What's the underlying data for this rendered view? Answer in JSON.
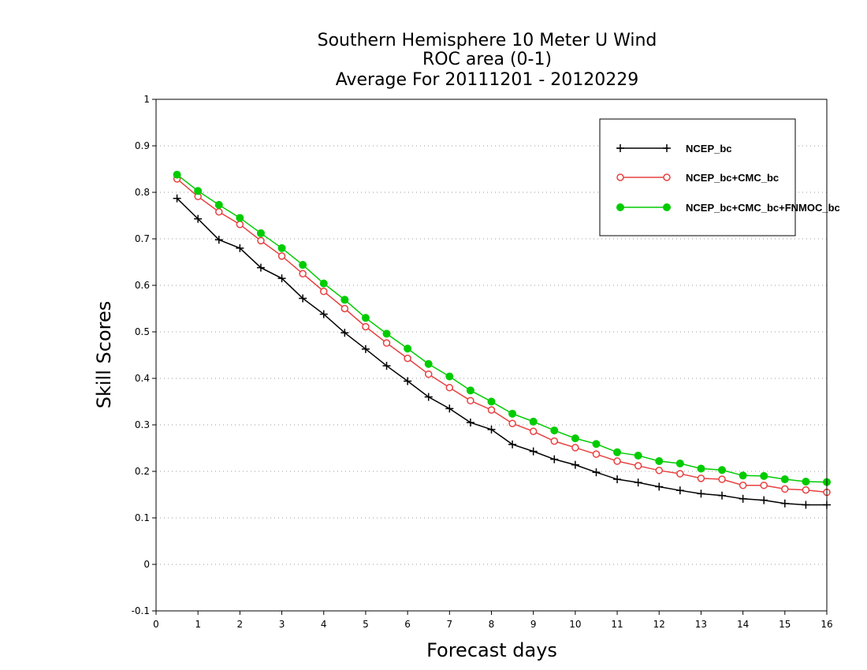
{
  "chart_data": {
    "type": "line",
    "title_lines": [
      "Southern Hemisphere 10 Meter U Wind",
      "ROC area (0-1)",
      "Average For 20111201 - 20120229"
    ],
    "xlabel": "Forecast days",
    "ylabel": "Skill Scores",
    "xlim": [
      0,
      16
    ],
    "ylim": [
      -0.1,
      1
    ],
    "xticks": [
      0,
      1,
      2,
      3,
      4,
      5,
      6,
      7,
      8,
      9,
      10,
      11,
      12,
      13,
      14,
      15,
      16
    ],
    "yticks": [
      -0.1,
      0,
      0.1,
      0.2,
      0.3,
      0.4,
      0.5,
      0.6,
      0.7,
      0.8,
      0.9,
      1
    ],
    "ytick_labels": [
      "-0.1",
      "0",
      "0.1",
      "0.2",
      "0.3",
      "0.4",
      "0.5",
      "0.6",
      "0.7",
      "0.8",
      "0.9",
      "1"
    ],
    "xtick_labels": [
      "0",
      "1",
      "2",
      "3",
      "4",
      "5",
      "6",
      "7",
      "8",
      "9",
      "10",
      "11",
      "12",
      "13",
      "14",
      "15",
      "16"
    ],
    "grid": "horizontal-dotted",
    "legend_position": "top-right",
    "x": [
      0.5,
      1,
      1.5,
      2,
      2.5,
      3,
      3.5,
      4,
      4.5,
      5,
      5.5,
      6,
      6.5,
      7,
      7.5,
      8,
      8.5,
      9,
      9.5,
      10,
      10.5,
      11,
      11.5,
      12,
      12.5,
      13,
      13.5,
      14,
      14.5,
      15,
      15.5,
      16
    ],
    "series": [
      {
        "name": "NCEP_bc",
        "color": "#000000",
        "marker": "plus",
        "values": [
          0.787,
          0.743,
          0.698,
          0.68,
          0.638,
          0.615,
          0.572,
          0.538,
          0.498,
          0.463,
          0.427,
          0.394,
          0.36,
          0.335,
          0.305,
          0.29,
          0.258,
          0.243,
          0.226,
          0.214,
          0.198,
          0.183,
          0.176,
          0.167,
          0.159,
          0.152,
          0.148,
          0.141,
          0.138,
          0.131,
          0.128,
          0.128
        ]
      },
      {
        "name": "NCEP_bc+CMC_bc",
        "color": "#e84040",
        "marker": "open-circle",
        "values": [
          0.829,
          0.791,
          0.758,
          0.731,
          0.696,
          0.663,
          0.625,
          0.587,
          0.55,
          0.511,
          0.476,
          0.443,
          0.409,
          0.38,
          0.352,
          0.332,
          0.303,
          0.286,
          0.265,
          0.251,
          0.237,
          0.222,
          0.212,
          0.202,
          0.195,
          0.185,
          0.183,
          0.17,
          0.17,
          0.162,
          0.16,
          0.155
        ]
      },
      {
        "name": "NCEP_bc+CMC_bc+FNMOC_bc",
        "color": "#00cc00",
        "marker": "filled-circle",
        "values": [
          0.838,
          0.803,
          0.773,
          0.745,
          0.712,
          0.68,
          0.644,
          0.604,
          0.569,
          0.53,
          0.496,
          0.464,
          0.431,
          0.404,
          0.374,
          0.35,
          0.324,
          0.307,
          0.288,
          0.271,
          0.259,
          0.241,
          0.234,
          0.222,
          0.217,
          0.206,
          0.203,
          0.191,
          0.19,
          0.183,
          0.178,
          0.177
        ]
      }
    ]
  }
}
